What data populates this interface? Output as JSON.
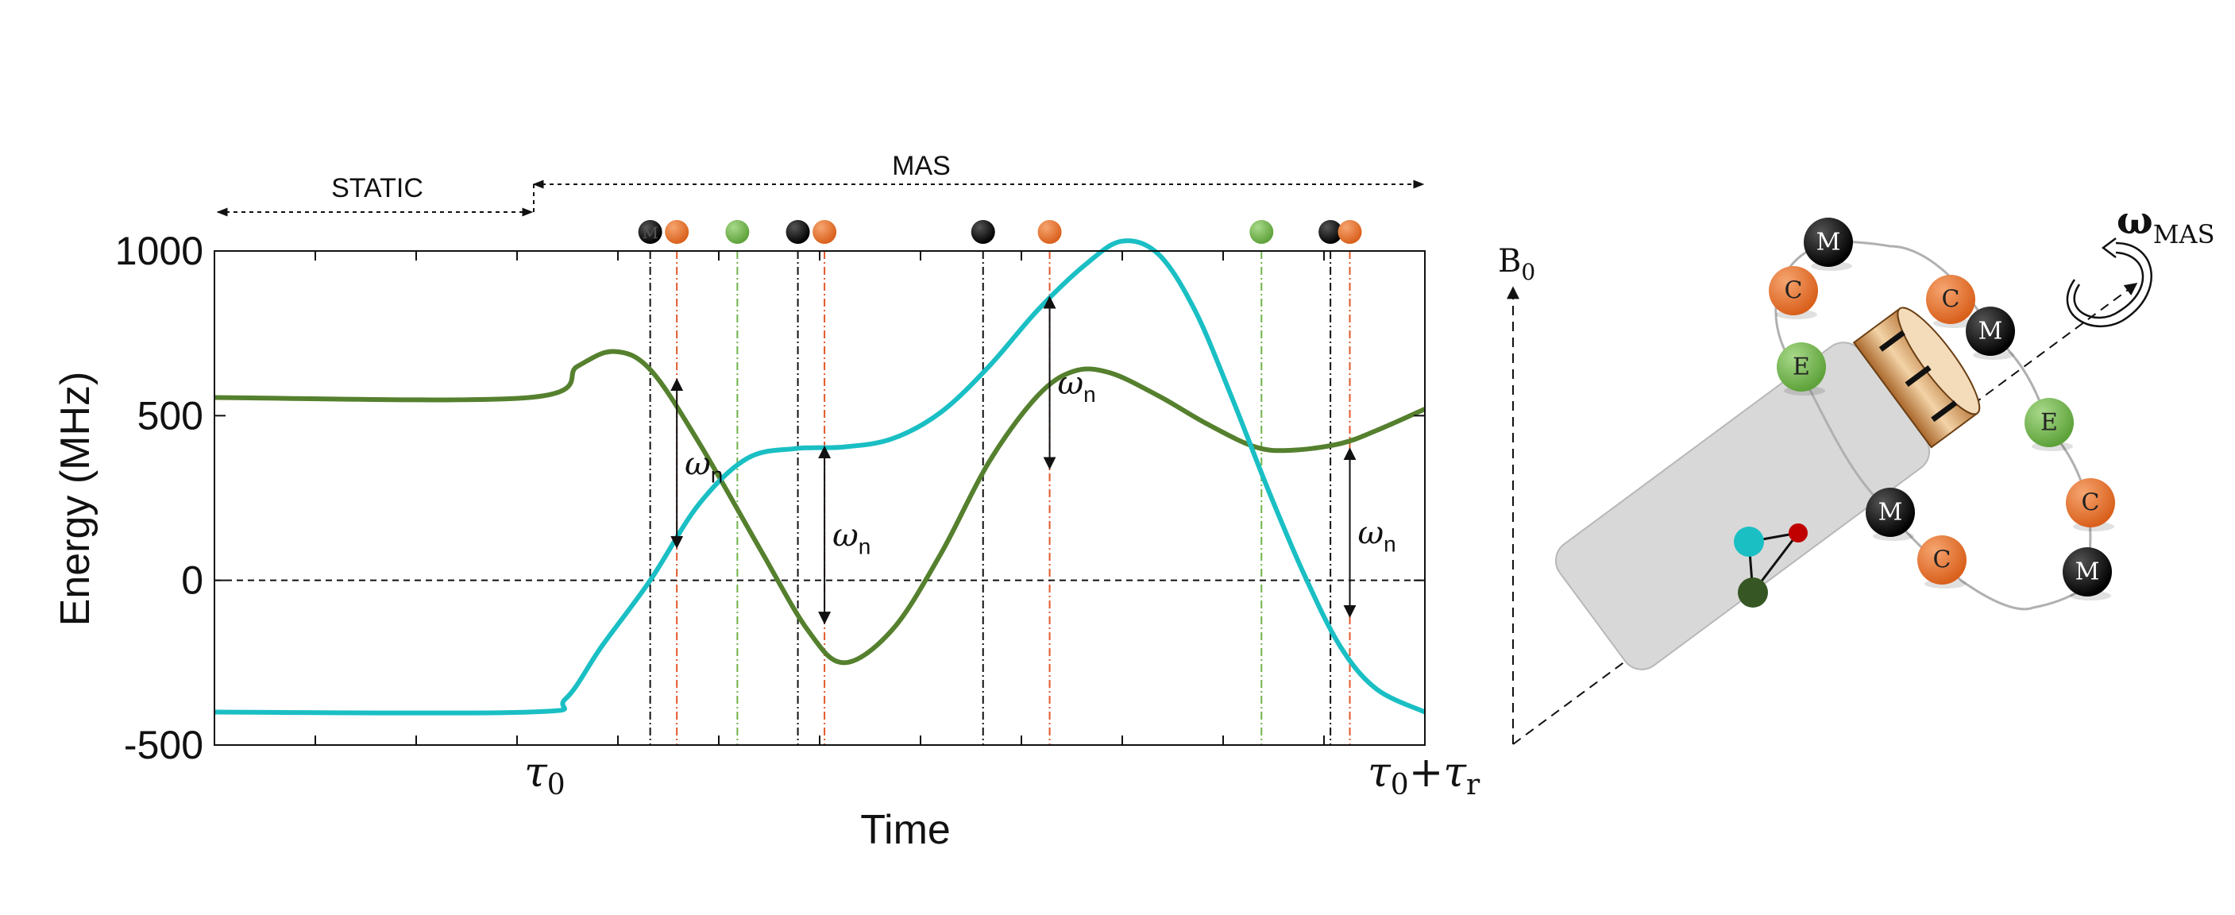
{
  "chart_data": {
    "type": "line",
    "xlabel": "Time",
    "ylabel": "Energy (MHz)",
    "ylim": [
      -500,
      1000
    ],
    "yticks": [
      -500,
      0,
      500,
      1000
    ],
    "ytick_labels": [
      "-500",
      "0",
      "500",
      "1000"
    ],
    "xlim": [
      0,
      1
    ],
    "xtick_labels": {
      "tau0": {
        "base": "τ",
        "sub": "0"
      },
      "end": {
        "base": "τ",
        "sub": "0",
        "plus": "+",
        "base2": "τ",
        "sub2": "r"
      }
    },
    "regions": {
      "static": "STATIC",
      "mas": "MAS"
    },
    "gap_label": {
      "base": "ω",
      "sub": "n"
    },
    "colors": {
      "green": "#55802e",
      "cyan": "#1abfc4",
      "black": "#111111",
      "orange": "#e87530",
      "light_green": "#7bbd52"
    },
    "series": [
      {
        "color": "green",
        "x": [
          0,
          0.26,
          0.3,
          0.33,
          0.36,
          0.4,
          0.45,
          0.49,
          0.52,
          0.56,
          0.6,
          0.64,
          0.68,
          0.71,
          0.74,
          0.78,
          0.82,
          0.86,
          0.89,
          0.93,
          0.96,
          1.0
        ],
        "y": [
          555,
          555,
          650,
          695,
          640,
          420,
          100,
          -150,
          -250,
          -150,
          80,
          360,
          560,
          635,
          630,
          560,
          475,
          405,
          395,
          415,
          455,
          520
        ]
      },
      {
        "color": "cyan",
        "x": [
          0,
          0.26,
          0.29,
          0.32,
          0.36,
          0.4,
          0.44,
          0.48,
          0.52,
          0.56,
          0.6,
          0.64,
          0.68,
          0.72,
          0.75,
          0.78,
          0.81,
          0.84,
          0.87,
          0.9,
          0.93,
          0.96,
          1.0
        ],
        "y": [
          -400,
          -400,
          -360,
          -200,
          0,
          230,
          370,
          400,
          405,
          430,
          510,
          650,
          820,
          960,
          1030,
          990,
          820,
          560,
          280,
          20,
          -200,
          -330,
          -400
        ]
      }
    ],
    "events": [
      {
        "x": 0.36,
        "kind": "black",
        "label": "M"
      },
      {
        "x": 0.382,
        "kind": "orange"
      },
      {
        "x": 0.432,
        "kind": "light_green"
      },
      {
        "x": 0.482,
        "kind": "black"
      },
      {
        "x": 0.504,
        "kind": "orange"
      },
      {
        "x": 0.635,
        "kind": "black"
      },
      {
        "x": 0.69,
        "kind": "orange"
      },
      {
        "x": 0.865,
        "kind": "light_green"
      },
      {
        "x": 0.922,
        "kind": "black"
      },
      {
        "x": 0.938,
        "kind": "orange"
      }
    ],
    "gaps": [
      {
        "x": 0.382,
        "y1": 610,
        "y2": 100,
        "label_side": "right"
      },
      {
        "x": 0.504,
        "y1": 405,
        "y2": -130,
        "label_side": "right"
      },
      {
        "x": 0.69,
        "y1": 860,
        "y2": 340,
        "label_side": "right"
      },
      {
        "x": 0.938,
        "y1": 400,
        "y2": -110,
        "label_side": "right"
      }
    ]
  },
  "diagram": {
    "b0_label": {
      "base": "B",
      "sub": "0"
    },
    "omega_label": {
      "base": "ω",
      "sub": "MAS"
    },
    "ring_nodes": [
      {
        "letter": "M",
        "kind": "black"
      },
      {
        "letter": "C",
        "kind": "orange"
      },
      {
        "letter": "E",
        "kind": "light_green"
      },
      {
        "letter": "C",
        "kind": "orange"
      },
      {
        "letter": "M",
        "kind": "black"
      },
      {
        "letter": "E",
        "kind": "light_green"
      },
      {
        "letter": "C",
        "kind": "orange"
      },
      {
        "letter": "M",
        "kind": "black"
      },
      {
        "letter": "C",
        "kind": "orange"
      },
      {
        "letter": "M",
        "kind": "black"
      }
    ]
  }
}
